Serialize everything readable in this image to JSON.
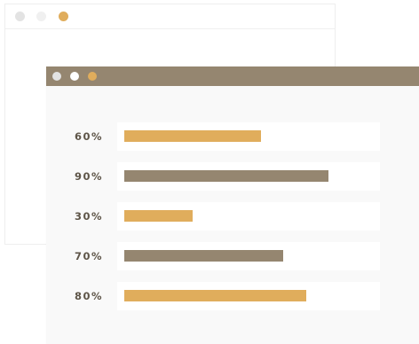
{
  "colors": {
    "accent": "#e0ad5c",
    "brown": "#958670",
    "dot_grey": "#e3e3e3",
    "dot_white": "#ffffff"
  },
  "windows": {
    "back": {
      "dots": [
        {
          "color": "#e3e3e3"
        },
        {
          "color": "#f0f0f0"
        },
        {
          "color": "#e0ad5c"
        }
      ]
    },
    "front": {
      "titlebar_color": "#958670",
      "dots": [
        {
          "color": "#e3e3e3"
        },
        {
          "color": "#ffffff"
        },
        {
          "color": "#e0ad5c"
        }
      ]
    }
  },
  "chart_data": {
    "type": "bar",
    "orientation": "horizontal",
    "categories": [
      "60%",
      "90%",
      "30%",
      "70%",
      "80%"
    ],
    "values": [
      60,
      90,
      30,
      70,
      80
    ],
    "bar_colors": [
      "#e0ad5c",
      "#958670",
      "#e0ad5c",
      "#958670",
      "#e0ad5c"
    ],
    "xlim": [
      0,
      100
    ],
    "title": "",
    "xlabel": "",
    "ylabel": "",
    "grid": false,
    "legend": "none"
  }
}
